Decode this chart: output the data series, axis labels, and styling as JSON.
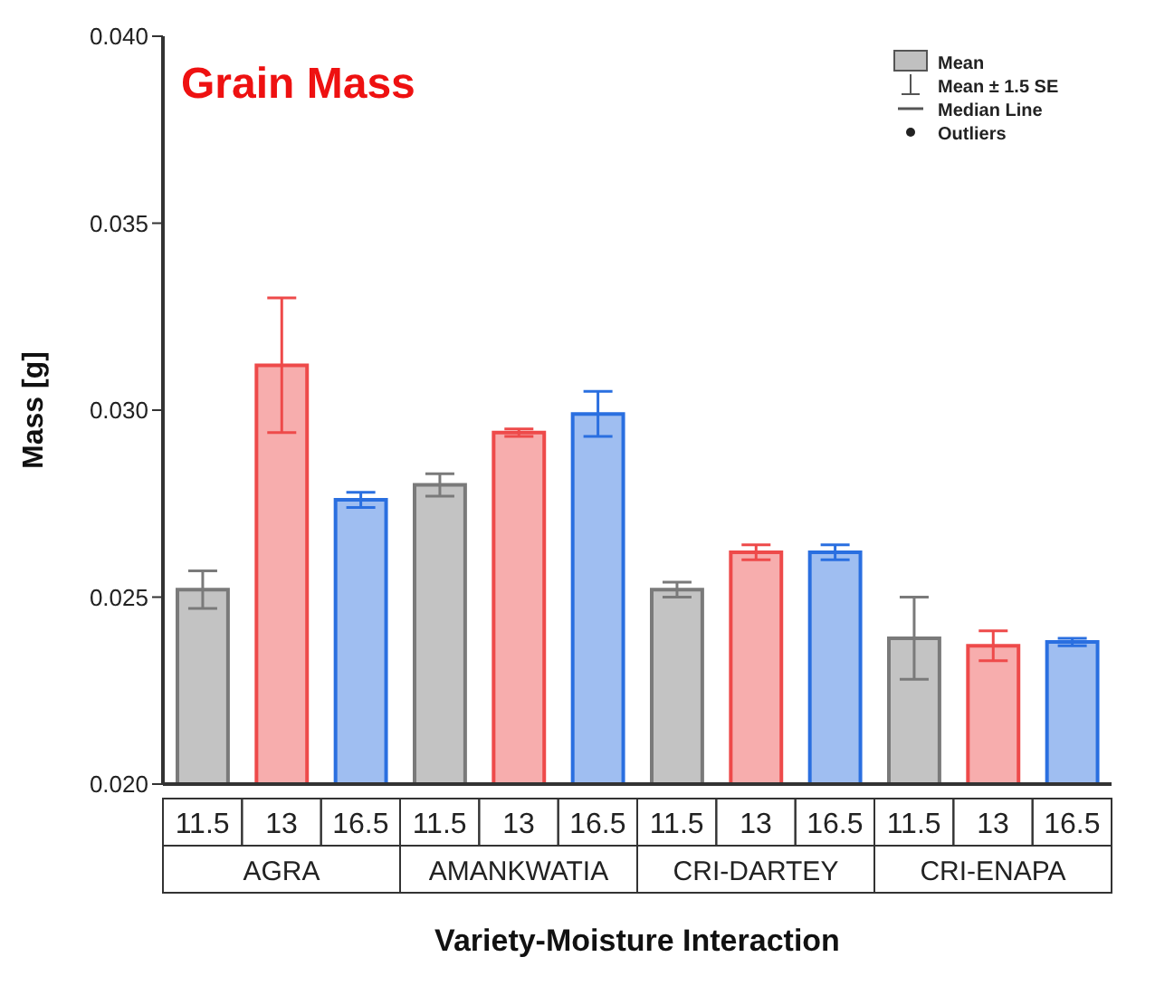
{
  "chart_data": {
    "type": "bar",
    "title": "Grain Mass",
    "xlabel": "Variety-Moisture Interaction",
    "ylabel": "Mass [g]",
    "categories": [
      "AGRA",
      "AMANKWATIA",
      "CRI-DARTEY",
      "CRI-ENAPA"
    ],
    "series": [
      {
        "name": "11.5",
        "color": "#7a7a7a",
        "values": [
          0.0252,
          0.028,
          0.0252,
          0.0239
        ],
        "errors": [
          0.0005,
          0.0003,
          0.0002,
          0.0011
        ]
      },
      {
        "name": "13",
        "color": "#ee4a4a",
        "values": [
          0.0312,
          0.0294,
          0.0262,
          0.0237
        ],
        "errors": [
          0.0018,
          0.0001,
          0.0002,
          0.0004
        ]
      },
      {
        "name": "16.5",
        "color": "#2a6fe0",
        "values": [
          0.0276,
          0.0299,
          0.0262,
          0.0238
        ],
        "errors": [
          0.0002,
          0.0006,
          0.0002,
          0.0001
        ]
      }
    ],
    "ylim": [
      0.02,
      0.04
    ],
    "yticks": [
      {
        "value": 0.02,
        "label": "0.020"
      },
      {
        "value": 0.025,
        "label": "0.025"
      },
      {
        "value": 0.03,
        "label": "0.030"
      },
      {
        "value": 0.035,
        "label": "0.035"
      },
      {
        "value": 0.04,
        "label": "0.040"
      }
    ],
    "grid": false,
    "annotations": [
      "Mean",
      "Mean ± 1.5 SE",
      "Median Line",
      "Outliers"
    ]
  }
}
